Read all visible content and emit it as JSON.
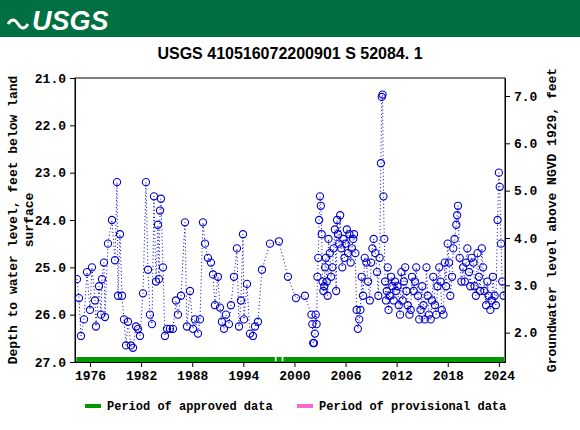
{
  "header": {
    "logo_text": "USGS"
  },
  "chart_data": {
    "type": "scatter",
    "title": "USGS 410516072200901 S 52084. 1",
    "ylabel": [
      "Depth to water level, feet below land",
      "surface"
    ],
    "y2label": "Groundwater level above NGVD 1929, feet",
    "xlim": [
      1974.24,
      2024.72
    ],
    "xticks": [
      1976,
      1982,
      1988,
      1994,
      2000,
      2006,
      2012,
      2018,
      2024
    ],
    "ylim": [
      27.0,
      21.0
    ],
    "yticks": [
      {
        "value": 21,
        "label": "21.0"
      },
      {
        "value": 22,
        "label": "22.0"
      },
      {
        "value": 23,
        "label": "23.0"
      },
      {
        "value": 24,
        "label": "24.0"
      },
      {
        "value": 25,
        "label": "25.0"
      },
      {
        "value": 26,
        "label": "26.0"
      },
      {
        "value": 27,
        "label": "27.0"
      }
    ],
    "y2lim": [
      1.38,
      7.38
    ],
    "y2ticks": [
      {
        "value": 2,
        "label": "2.0"
      },
      {
        "value": 3,
        "label": "3.0"
      },
      {
        "value": 4,
        "label": "4.0"
      },
      {
        "value": 5,
        "label": "5.0"
      },
      {
        "value": 6,
        "label": "6.0"
      },
      {
        "value": 7,
        "label": "7.0"
      }
    ],
    "legend": "bottom",
    "periods": [
      {
        "name": "Period of approved data",
        "color": "#009900",
        "ranges": [
          [
            1974.4,
            1997.7
          ],
          [
            1997.9,
            1998.5
          ],
          [
            1998.7,
            2024.6
          ]
        ]
      },
      {
        "name": "Period of provisional data",
        "color": "#ff66cc",
        "ranges": []
      }
    ],
    "x": [
      1974.47,
      1974.71,
      1974.94,
      1975.3,
      1975.65,
      1976.0,
      1976.23,
      1976.59,
      1976.7,
      1977.06,
      1977.29,
      1977.41,
      1977.64,
      1977.76,
      1978.11,
      1978.58,
      1978.93,
      1979.17,
      1979.29,
      1979.52,
      1979.76,
      1979.99,
      1980.23,
      1980.46,
      1980.81,
      1981.05,
      1981.4,
      1981.63,
      1981.87,
      1982.22,
      1982.57,
      1982.81,
      1983.04,
      1983.28,
      1983.51,
      1983.75,
      1983.98,
      1984.1,
      1984.22,
      1984.33,
      1984.57,
      1984.8,
      1985.04,
      1985.39,
      1985.74,
      1986.09,
      1986.33,
      1986.68,
      1987.15,
      1987.38,
      1987.74,
      1988.09,
      1988.32,
      1988.68,
      1988.91,
      1989.26,
      1989.5,
      1989.85,
      1990.2,
      1990.44,
      1990.67,
      1991.02,
      1991.26,
      1991.49,
      1991.73,
      1991.96,
      1992.31,
      1992.55,
      1992.9,
      1993.25,
      1993.49,
      1993.72,
      1993.96,
      1994.08,
      1994.43,
      1994.78,
      1995.13,
      1995.37,
      1995.72,
      1996.19,
      1997.13,
      1998.18,
      1999.24,
      2000.18,
      2001.23,
      2002.0,
      2002.1,
      2002.2,
      2002.3,
      2002.4,
      2002.5,
      2002.6,
      2002.7,
      2002.8,
      2002.9,
      2003.0,
      2003.1,
      2003.2,
      2003.3,
      2003.4,
      2003.5,
      2003.6,
      2003.7,
      2003.8,
      2003.9,
      2004.0,
      2004.15,
      2004.3,
      2004.45,
      2004.6,
      2004.75,
      2004.9,
      2005.0,
      2005.12,
      2005.25,
      2005.37,
      2005.5,
      2005.62,
      2005.75,
      2005.87,
      2006.0,
      2006.15,
      2006.3,
      2006.45,
      2006.6,
      2006.75,
      2006.9,
      2007.0,
      2007.15,
      2007.3,
      2007.45,
      2007.6,
      2007.75,
      2007.9,
      2008.05,
      2008.25,
      2008.45,
      2008.65,
      2008.85,
      2009.0,
      2009.15,
      2009.3,
      2009.5,
      2009.7,
      2009.85,
      2010.0,
      2010.15,
      2010.25,
      2010.35,
      2010.45,
      2010.55,
      2010.65,
      2010.75,
      2010.85,
      2010.95,
      2011.05,
      2011.2,
      2011.35,
      2011.5,
      2011.65,
      2011.8,
      2011.95,
      2012.1,
      2012.25,
      2012.4,
      2012.55,
      2012.7,
      2012.85,
      2013.0,
      2013.15,
      2013.3,
      2013.5,
      2013.65,
      2013.8,
      2014.0,
      2014.15,
      2014.3,
      2014.5,
      2014.65,
      2014.8,
      2015.0,
      2015.15,
      2015.3,
      2015.5,
      2015.65,
      2015.8,
      2016.0,
      2016.15,
      2016.3,
      2016.5,
      2016.65,
      2016.8,
      2017.0,
      2017.15,
      2017.3,
      2017.5,
      2017.65,
      2017.8,
      2018.0,
      2018.15,
      2018.3,
      2018.5,
      2018.65,
      2018.8,
      2019.0,
      2019.1,
      2019.2,
      2019.4,
      2019.6,
      2019.8,
      2020.0,
      2020.15,
      2020.3,
      2020.5,
      2020.65,
      2020.8,
      2021.0,
      2021.15,
      2021.3,
      2021.5,
      2021.65,
      2021.8,
      2022.0,
      2022.15,
      2022.3,
      2022.5,
      2022.65,
      2022.8,
      2023.0,
      2023.15,
      2023.3,
      2023.5,
      2023.65,
      2023.85,
      2024.0,
      2024.1,
      2024.25,
      2024.4,
      2024.55
    ],
    "series": [
      {
        "color": "#0000cc",
        "marker": "circle",
        "line_style": "dotted",
        "values": [
          25.25,
          25.65,
          26.45,
          26.1,
          25.1,
          25.9,
          25.0,
          25.7,
          26.25,
          25.4,
          26.0,
          25.25,
          24.9,
          26.05,
          24.5,
          24.0,
          24.85,
          23.2,
          25.6,
          24.3,
          25.6,
          26.1,
          26.65,
          26.15,
          26.65,
          26.7,
          26.25,
          26.3,
          26.45,
          25.55,
          23.2,
          25.05,
          26.0,
          26.2,
          23.5,
          25.3,
          24.1,
          25.25,
          23.8,
          23.55,
          25.0,
          26.45,
          26.3,
          26.3,
          26.3,
          25.7,
          26.0,
          25.6,
          24.05,
          26.25,
          25.5,
          26.3,
          26.1,
          26.4,
          26.1,
          24.05,
          24.5,
          24.8,
          24.9,
          25.15,
          25.8,
          25.2,
          25.85,
          26.15,
          26.3,
          26.0,
          26.2,
          25.8,
          25.2,
          24.6,
          26.25,
          25.7,
          24.3,
          26.1,
          25.35,
          26.4,
          26.45,
          26.25,
          26.15,
          25.05,
          24.5,
          24.45,
          25.2,
          25.65,
          25.6,
          26.0,
          26.2,
          26.6,
          26.6,
          26.4,
          26.0,
          26.2,
          25.2,
          24.8,
          24.0,
          23.5,
          23.7,
          24.3,
          25.3,
          25.5,
          25.4,
          25.0,
          24.8,
          25.3,
          25.6,
          24.4,
          24.7,
          25.2,
          25.0,
          24.6,
          24.2,
          25.5,
          24.0,
          24.3,
          24.5,
          23.9,
          24.6,
          25.0,
          24.4,
          24.8,
          24.5,
          24.2,
          24.7,
          24.3,
          24.9,
          24.6,
          24.4,
          24.3,
          24.7,
          25.9,
          26.3,
          26.1,
          25.9,
          25.2,
          25.6,
          24.8,
          24.9,
          25.3,
          25.7,
          24.9,
          24.6,
          24.4,
          24.7,
          25.1,
          25.6,
          24.8,
          22.8,
          21.4,
          21.35,
          23.5,
          24.4,
          25.3,
          25.7,
          25.5,
          25.0,
          25.9,
          25.6,
          25.2,
          25.4,
          25.7,
          25.3,
          25.5,
          25.4,
          25.8,
          26.0,
          25.1,
          25.7,
          25.3,
          25.0,
          25.5,
          25.8,
          26.0,
          25.9,
          25.2,
          25.5,
          25.3,
          25.0,
          25.6,
          26.1,
          25.9,
          25.4,
          25.8,
          26.1,
          25.0,
          25.6,
          26.0,
          26.1,
          25.7,
          25.2,
          25.8,
          26.0,
          25.4,
          25.0,
          25.3,
          25.9,
          26.0,
          24.9,
          25.4,
          24.5,
          24.9,
          25.6,
          25.2,
          24.6,
          24.4,
          24.1,
          23.9,
          23.7,
          24.8,
          25.3,
          25.0,
          25.3,
          24.9,
          24.6,
          25.1,
          25.4,
          24.8,
          24.9,
          25.4,
          25.6,
          24.7,
          25.2,
          25.5,
          24.6,
          25.0,
          25.5,
          25.8,
          25.3,
          25.6,
          25.9,
          25.7,
          25.2,
          25.6,
          25.8,
          24.0,
          23.0,
          23.3,
          24.5,
          25.3,
          25.6
        ]
      }
    ]
  }
}
